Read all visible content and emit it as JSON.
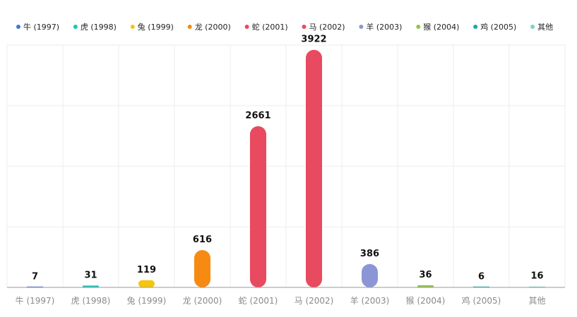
{
  "chart_data": {
    "type": "bar",
    "categories": [
      "牛 (1997)",
      "虎 (1998)",
      "兔 (1999)",
      "龙 (2000)",
      "蛇 (2001)",
      "马 (2002)",
      "羊 (2003)",
      "猴 (2004)",
      "鸡 (2005)",
      "其他"
    ],
    "values": [
      7,
      31,
      119,
      616,
      2661,
      3922,
      386,
      36,
      6,
      16
    ],
    "colors": [
      "#4a74d4",
      "#1fc2b8",
      "#f5c50f",
      "#f78a10",
      "#e84a5f",
      "#e84a5f",
      "#8c96d6",
      "#96c24e",
      "#1aa6a6",
      "#7ed2c8"
    ],
    "legend": {
      "position": "top",
      "items": [
        "牛 (1997)",
        "虎 (1998)",
        "兔 (1999)",
        "龙 (2000)",
        "蛇 (2001)",
        "马 (2002)",
        "羊 (2003)",
        "猴 (2004)",
        "鸡 (2005)",
        "其他"
      ]
    },
    "ylim": [
      0,
      4000
    ],
    "grid": true,
    "title": "",
    "xlabel": "",
    "ylabel": ""
  }
}
